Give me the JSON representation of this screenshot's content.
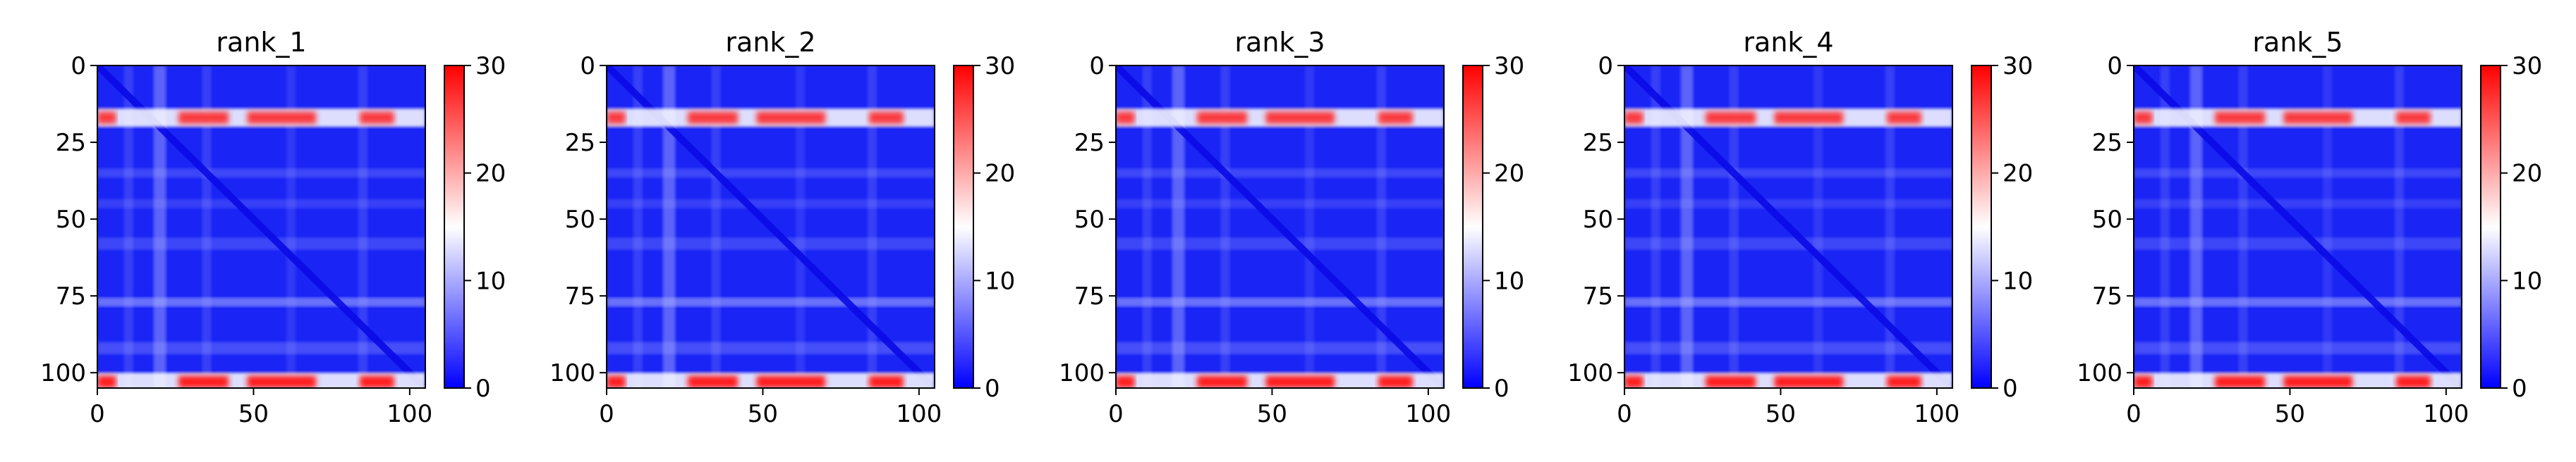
{
  "chart_data": [
    {
      "type": "heatmap",
      "title": "rank_1",
      "xlim": [
        0,
        105
      ],
      "ylim": [
        105,
        0
      ],
      "xticks": [
        0,
        50,
        100
      ],
      "yticks": [
        0,
        25,
        50,
        75,
        100
      ],
      "colorbar": {
        "min": 0,
        "max": 30,
        "ticks": [
          0,
          10,
          20,
          30
        ],
        "colormap": "bwr"
      }
    },
    {
      "type": "heatmap",
      "title": "rank_2",
      "xlim": [
        0,
        105
      ],
      "ylim": [
        105,
        0
      ],
      "xticks": [
        0,
        50,
        100
      ],
      "yticks": [
        0,
        25,
        50,
        75,
        100
      ],
      "colorbar": {
        "min": 0,
        "max": 30,
        "ticks": [
          0,
          10,
          20,
          30
        ],
        "colormap": "bwr"
      }
    },
    {
      "type": "heatmap",
      "title": "rank_3",
      "xlim": [
        0,
        105
      ],
      "ylim": [
        105,
        0
      ],
      "xticks": [
        0,
        50,
        100
      ],
      "yticks": [
        0,
        25,
        50,
        75,
        100
      ],
      "colorbar": {
        "min": 0,
        "max": 30,
        "ticks": [
          0,
          10,
          20,
          30
        ],
        "colormap": "bwr"
      }
    },
    {
      "type": "heatmap",
      "title": "rank_4",
      "xlim": [
        0,
        105
      ],
      "ylim": [
        105,
        0
      ],
      "xticks": [
        0,
        50,
        100
      ],
      "yticks": [
        0,
        25,
        50,
        75,
        100
      ],
      "colorbar": {
        "min": 0,
        "max": 30,
        "ticks": [
          0,
          10,
          20,
          30
        ],
        "colormap": "bwr"
      }
    },
    {
      "type": "heatmap",
      "title": "rank_5",
      "xlim": [
        0,
        105
      ],
      "ylim": [
        105,
        0
      ],
      "xticks": [
        0,
        50,
        100
      ],
      "yticks": [
        0,
        25,
        50,
        75,
        100
      ],
      "colorbar": {
        "min": 0,
        "max": 30,
        "ticks": [
          0,
          10,
          20,
          30
        ],
        "colormap": "bwr"
      }
    }
  ],
  "colors": {
    "low": "#0000ff",
    "mid": "#ffffff",
    "high": "#ff0000"
  }
}
